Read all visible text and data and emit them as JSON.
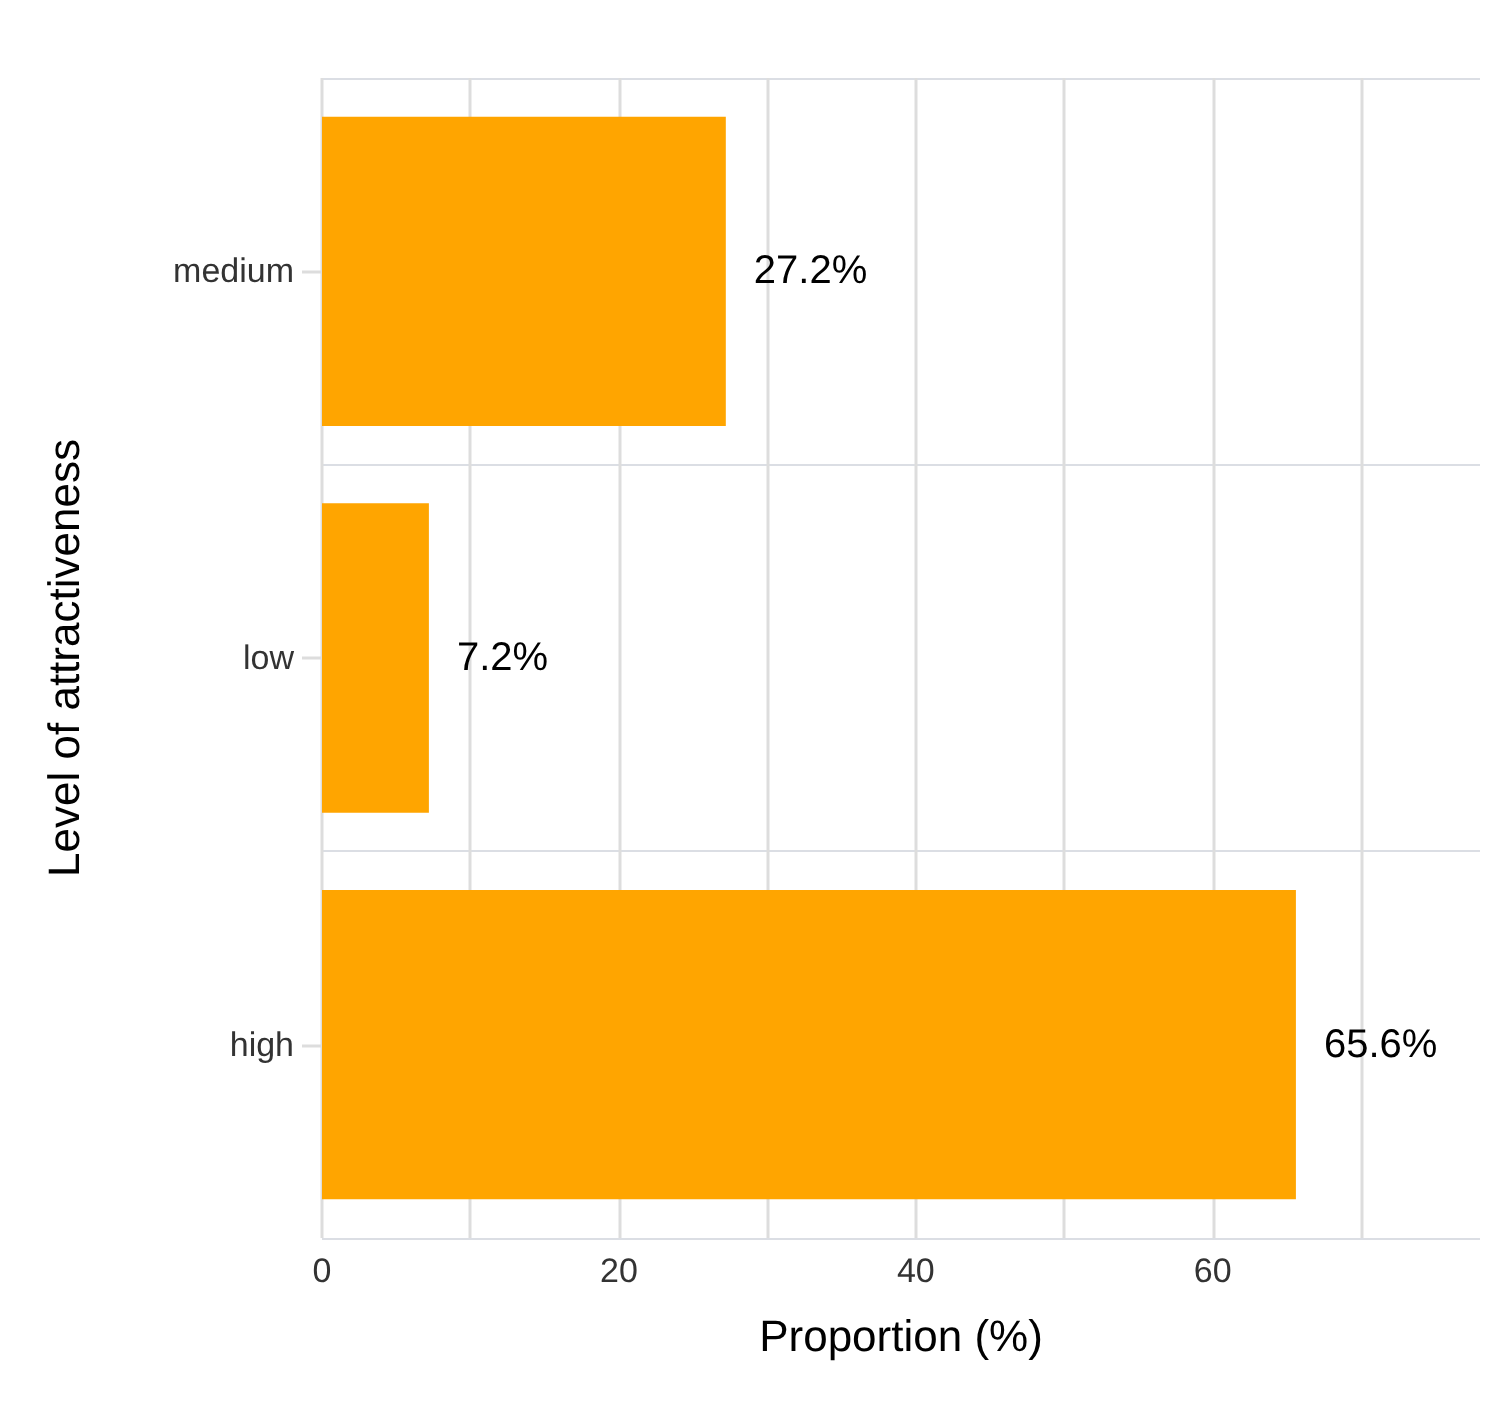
{
  "chart_data": {
    "type": "bar",
    "orientation": "horizontal",
    "xlabel": "Proportion (%)",
    "ylabel": "Level of attractiveness",
    "categories": [
      "medium",
      "low",
      "high"
    ],
    "values": [
      27.2,
      7.2,
      65.6
    ],
    "color": "#ffa500",
    "value_labels": [
      "27.2%",
      "7.2%",
      "65.6%"
    ],
    "xlim": [
      0,
      78
    ],
    "xticks": [
      0,
      {
        "value": 10,
        "label": null
      },
      20,
      {
        "value": 30,
        "label": null
      },
      40,
      {
        "value": 50,
        "label": null
      },
      60,
      {
        "value": 70,
        "label": null
      }
    ],
    "grid": true
  }
}
